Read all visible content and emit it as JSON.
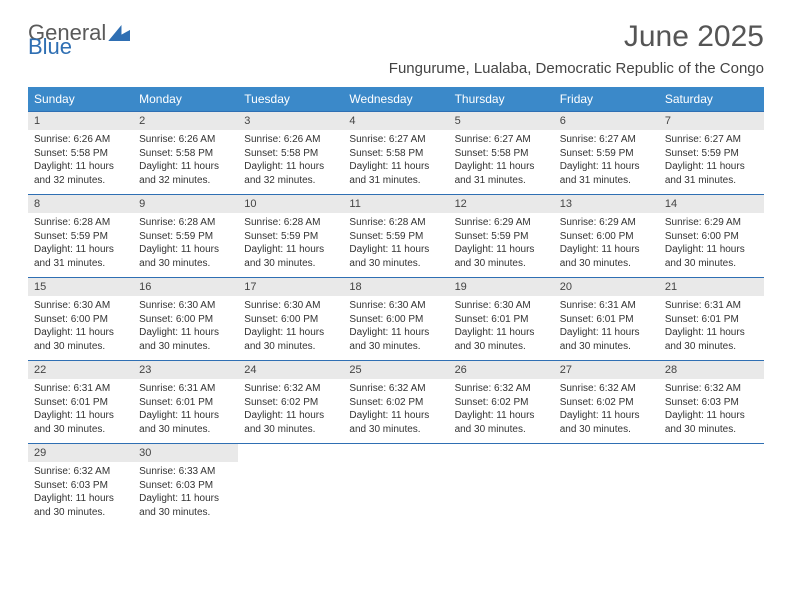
{
  "brand": {
    "part1": "General",
    "part2": "Blue"
  },
  "title": "June 2025",
  "subtitle": "Fungurume, Lualaba, Democratic Republic of the Congo",
  "colors": {
    "header_bg": "#3b89c9",
    "header_fg": "#ffffff",
    "daynum_bg": "#e9e9e9",
    "rule": "#2f6fb3",
    "text": "#333333",
    "title": "#555555"
  },
  "weekdays": [
    "Sunday",
    "Monday",
    "Tuesday",
    "Wednesday",
    "Thursday",
    "Friday",
    "Saturday"
  ],
  "weeks": [
    [
      {
        "n": 1,
        "sr": "6:26 AM",
        "ss": "5:58 PM",
        "dl": "11 hours and 32 minutes."
      },
      {
        "n": 2,
        "sr": "6:26 AM",
        "ss": "5:58 PM",
        "dl": "11 hours and 32 minutes."
      },
      {
        "n": 3,
        "sr": "6:26 AM",
        "ss": "5:58 PM",
        "dl": "11 hours and 32 minutes."
      },
      {
        "n": 4,
        "sr": "6:27 AM",
        "ss": "5:58 PM",
        "dl": "11 hours and 31 minutes."
      },
      {
        "n": 5,
        "sr": "6:27 AM",
        "ss": "5:58 PM",
        "dl": "11 hours and 31 minutes."
      },
      {
        "n": 6,
        "sr": "6:27 AM",
        "ss": "5:59 PM",
        "dl": "11 hours and 31 minutes."
      },
      {
        "n": 7,
        "sr": "6:27 AM",
        "ss": "5:59 PM",
        "dl": "11 hours and 31 minutes."
      }
    ],
    [
      {
        "n": 8,
        "sr": "6:28 AM",
        "ss": "5:59 PM",
        "dl": "11 hours and 31 minutes."
      },
      {
        "n": 9,
        "sr": "6:28 AM",
        "ss": "5:59 PM",
        "dl": "11 hours and 30 minutes."
      },
      {
        "n": 10,
        "sr": "6:28 AM",
        "ss": "5:59 PM",
        "dl": "11 hours and 30 minutes."
      },
      {
        "n": 11,
        "sr": "6:28 AM",
        "ss": "5:59 PM",
        "dl": "11 hours and 30 minutes."
      },
      {
        "n": 12,
        "sr": "6:29 AM",
        "ss": "5:59 PM",
        "dl": "11 hours and 30 minutes."
      },
      {
        "n": 13,
        "sr": "6:29 AM",
        "ss": "6:00 PM",
        "dl": "11 hours and 30 minutes."
      },
      {
        "n": 14,
        "sr": "6:29 AM",
        "ss": "6:00 PM",
        "dl": "11 hours and 30 minutes."
      }
    ],
    [
      {
        "n": 15,
        "sr": "6:30 AM",
        "ss": "6:00 PM",
        "dl": "11 hours and 30 minutes."
      },
      {
        "n": 16,
        "sr": "6:30 AM",
        "ss": "6:00 PM",
        "dl": "11 hours and 30 minutes."
      },
      {
        "n": 17,
        "sr": "6:30 AM",
        "ss": "6:00 PM",
        "dl": "11 hours and 30 minutes."
      },
      {
        "n": 18,
        "sr": "6:30 AM",
        "ss": "6:00 PM",
        "dl": "11 hours and 30 minutes."
      },
      {
        "n": 19,
        "sr": "6:30 AM",
        "ss": "6:01 PM",
        "dl": "11 hours and 30 minutes."
      },
      {
        "n": 20,
        "sr": "6:31 AM",
        "ss": "6:01 PM",
        "dl": "11 hours and 30 minutes."
      },
      {
        "n": 21,
        "sr": "6:31 AM",
        "ss": "6:01 PM",
        "dl": "11 hours and 30 minutes."
      }
    ],
    [
      {
        "n": 22,
        "sr": "6:31 AM",
        "ss": "6:01 PM",
        "dl": "11 hours and 30 minutes."
      },
      {
        "n": 23,
        "sr": "6:31 AM",
        "ss": "6:01 PM",
        "dl": "11 hours and 30 minutes."
      },
      {
        "n": 24,
        "sr": "6:32 AM",
        "ss": "6:02 PM",
        "dl": "11 hours and 30 minutes."
      },
      {
        "n": 25,
        "sr": "6:32 AM",
        "ss": "6:02 PM",
        "dl": "11 hours and 30 minutes."
      },
      {
        "n": 26,
        "sr": "6:32 AM",
        "ss": "6:02 PM",
        "dl": "11 hours and 30 minutes."
      },
      {
        "n": 27,
        "sr": "6:32 AM",
        "ss": "6:02 PM",
        "dl": "11 hours and 30 minutes."
      },
      {
        "n": 28,
        "sr": "6:32 AM",
        "ss": "6:03 PM",
        "dl": "11 hours and 30 minutes."
      }
    ],
    [
      {
        "n": 29,
        "sr": "6:32 AM",
        "ss": "6:03 PM",
        "dl": "11 hours and 30 minutes."
      },
      {
        "n": 30,
        "sr": "6:33 AM",
        "ss": "6:03 PM",
        "dl": "11 hours and 30 minutes."
      },
      null,
      null,
      null,
      null,
      null
    ]
  ],
  "labels": {
    "sunrise": "Sunrise:",
    "sunset": "Sunset:",
    "daylight": "Daylight:"
  }
}
